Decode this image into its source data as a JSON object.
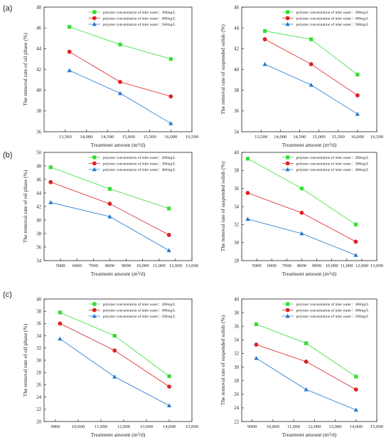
{
  "panel_letters": [
    "(a)",
    "(b)",
    "(c)"
  ],
  "series_colors": [
    "#33dd33",
    "#dd2222",
    "#2277cc"
  ],
  "chart_data": [
    {
      "type": "line",
      "panel": "(a)",
      "xlabel": "Treatment amount (m³/d)",
      "ylabel": "The removal rate of oil phase (%)",
      "xlim": [
        13000,
        16500
      ],
      "xticks": [
        13500,
        14000,
        14500,
        15000,
        15500,
        16000,
        16500
      ],
      "xtick_labels": [
        "13,500",
        "14,000",
        "14,500",
        "15,000",
        "15,500",
        "16,000",
        "16,500"
      ],
      "ylim": [
        36,
        48
      ],
      "yticks": [
        36,
        38,
        40,
        42,
        44,
        46,
        48
      ],
      "x": [
        13600,
        14800,
        16000
      ],
      "series": [
        {
          "name": "polymer concentration of inlet water：300mg/L",
          "values": [
            46.1,
            44.4,
            43.0
          ]
        },
        {
          "name": "polymer concentration of inlet water：400mg/L",
          "values": [
            43.7,
            40.8,
            39.4
          ]
        },
        {
          "name": "polymer concentration of inlet water：500mg/L",
          "values": [
            41.9,
            39.7,
            36.8
          ]
        }
      ]
    },
    {
      "type": "line",
      "panel": "",
      "xlabel": "Treatment amount (m³/d)",
      "ylabel": "The removal rate of suspended solids (%)",
      "xlim": [
        13000,
        16500
      ],
      "xticks": [
        13500,
        14000,
        14500,
        15000,
        15500,
        16000,
        16500
      ],
      "xtick_labels": [
        "13,500",
        "14,000",
        "14,500",
        "15,000",
        "15,500",
        "16,000",
        "16,500"
      ],
      "ylim": [
        34,
        46
      ],
      "yticks": [
        34,
        36,
        38,
        40,
        42,
        44,
        46
      ],
      "x": [
        13600,
        14800,
        16000
      ],
      "series": [
        {
          "name": "polymer concentration of inlet water：300mg/L",
          "values": [
            43.7,
            42.9,
            39.5
          ]
        },
        {
          "name": "polymer concentration of inlet water：400mg/L",
          "values": [
            42.9,
            40.5,
            37.5
          ]
        },
        {
          "name": "polymer concentration of inlet water：500mg/L",
          "values": [
            40.5,
            38.5,
            35.7
          ]
        }
      ]
    },
    {
      "type": "line",
      "panel": "(b)",
      "xlabel": "Treatment amount (m³/d)",
      "ylabel": "The removal rate of oil phase (%)",
      "xlim": [
        4000,
        13000
      ],
      "xticks": [
        5000,
        6000,
        7000,
        8000,
        9000,
        10000,
        11000,
        12000,
        13000
      ],
      "xtick_labels": [
        "5000",
        "6000",
        "7000",
        "8000",
        "9000",
        "10,000",
        "11,000",
        "12,000",
        "13,000"
      ],
      "ylim": [
        34,
        50
      ],
      "yticks": [
        34,
        36,
        38,
        40,
        42,
        44,
        46,
        48,
        50
      ],
      "x": [
        4400,
        8000,
        11600
      ],
      "series": [
        {
          "name": "polymer concentration of inlet water：200mg/L",
          "values": [
            47.8,
            44.6,
            41.7
          ]
        },
        {
          "name": "polymer concentration of inlet water：300mg/L",
          "values": [
            45.6,
            42.4,
            37.8
          ]
        },
        {
          "name": "polymer concentration of inlet water：400mg/L",
          "values": [
            42.6,
            40.5,
            35.5
          ]
        }
      ]
    },
    {
      "type": "line",
      "panel": "",
      "xlabel": "Treatment amount (m³/d)",
      "ylabel": "The removal rate of suspended solids (%)",
      "xlim": [
        4000,
        13000
      ],
      "xticks": [
        5000,
        6000,
        7000,
        8000,
        9000,
        10000,
        11000,
        12000,
        13000
      ],
      "xtick_labels": [
        "5000",
        "6000",
        "7000",
        "8000",
        "9000",
        "10,000",
        "11,000",
        "12,000",
        "13,000"
      ],
      "ylim": [
        28,
        40
      ],
      "yticks": [
        28,
        30,
        32,
        34,
        36,
        38,
        40
      ],
      "x": [
        4400,
        8000,
        11600
      ],
      "series": [
        {
          "name": "polymer concentration of inlet water：200mg/L",
          "values": [
            39.3,
            36.0,
            32.0
          ]
        },
        {
          "name": "polymer concentration of inlet water：300mg/L",
          "values": [
            35.5,
            33.3,
            30.1
          ]
        },
        {
          "name": "polymer concentration of inlet water：400mg/L",
          "values": [
            32.6,
            31.0,
            28.6
          ]
        }
      ]
    },
    {
      "type": "line",
      "panel": "(c)",
      "xlabel": "Treatment amount (m³/d)",
      "ylabel": "The removal rate of oil phase (%)",
      "xlim": [
        8500,
        15000
      ],
      "xticks": [
        9000,
        10000,
        11000,
        12000,
        13000,
        14000,
        15000
      ],
      "xtick_labels": [
        "9000",
        "10,000",
        "11,000",
        "12,000",
        "13,000",
        "14,000",
        "15,000"
      ],
      "ylim": [
        20,
        40
      ],
      "yticks": [
        20,
        22,
        24,
        26,
        28,
        30,
        32,
        34,
        36,
        38,
        40
      ],
      "x": [
        9200,
        11600,
        14000
      ],
      "series": [
        {
          "name": "polymer concentration of inlet water：300mg/L",
          "values": [
            37.8,
            34.0,
            27.4
          ]
        },
        {
          "name": "polymer concentration of inlet water：400mg/L",
          "values": [
            36.0,
            31.6,
            25.7
          ]
        },
        {
          "name": "polymer concentration of inlet water：500mg/L",
          "values": [
            33.5,
            27.3,
            22.6
          ]
        }
      ]
    },
    {
      "type": "line",
      "panel": "",
      "xlabel": "Treatment amount (m³/d)",
      "ylabel": "The removal rate of suspended solids (%)",
      "xlim": [
        8500,
        15000
      ],
      "xticks": [
        9000,
        10000,
        11000,
        12000,
        13000,
        14000,
        15000
      ],
      "xtick_labels": [
        "9000",
        "10,000",
        "11,000",
        "12,000",
        "13,000",
        "14,000",
        "15,000"
      ],
      "ylim": [
        22,
        40
      ],
      "yticks": [
        22,
        24,
        26,
        28,
        30,
        32,
        34,
        36,
        38,
        40
      ],
      "x": [
        9200,
        11600,
        14000
      ],
      "series": [
        {
          "name": "polymer concentration of inlet water：300mg/L",
          "values": [
            36.3,
            33.5,
            28.6
          ]
        },
        {
          "name": "polymer concentration of inlet water：400mg/L",
          "values": [
            33.3,
            30.8,
            26.7
          ]
        },
        {
          "name": "polymer concentration of inlet water：500mg/L",
          "values": [
            31.3,
            26.7,
            23.7
          ]
        }
      ]
    }
  ]
}
